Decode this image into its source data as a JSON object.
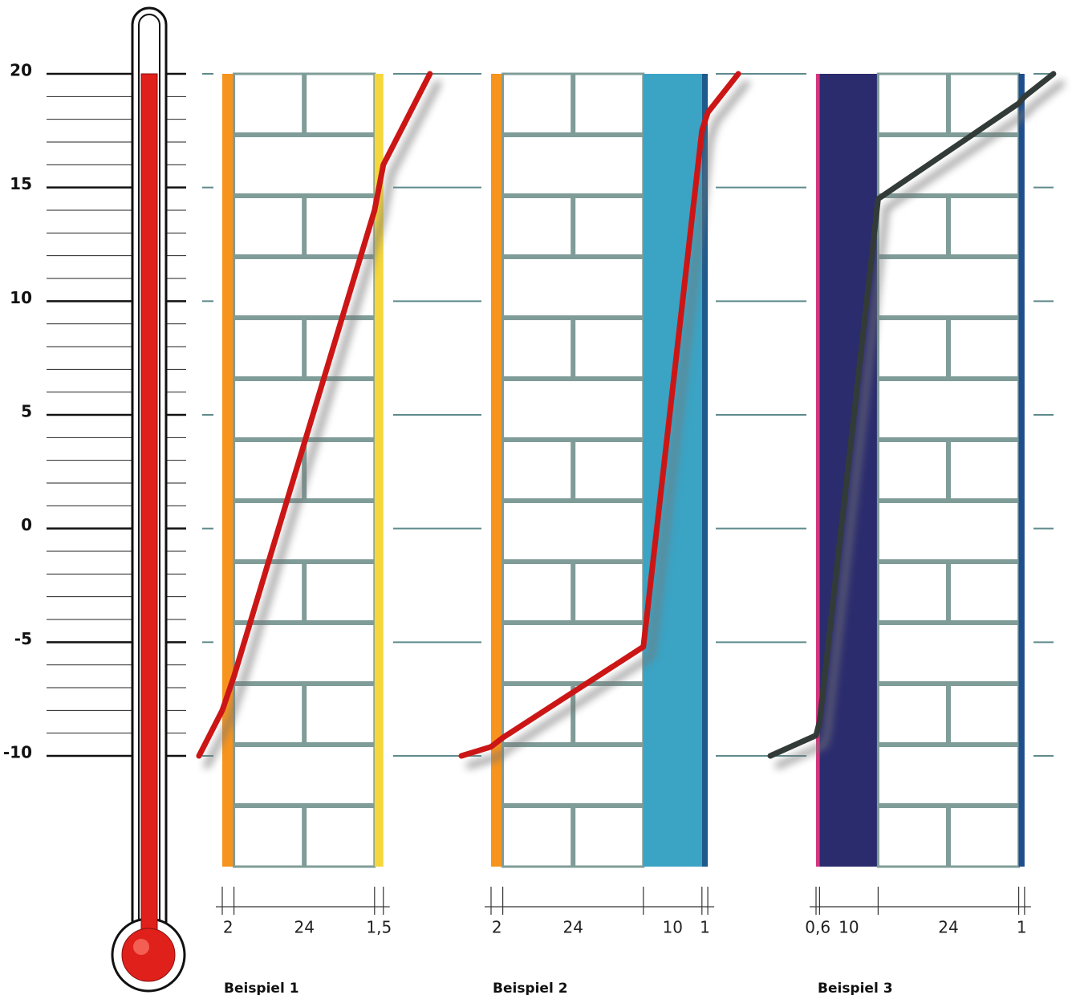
{
  "temperature_axis": {
    "ylim": [
      -10,
      20
    ],
    "yticks": [
      -10,
      -5,
      0,
      5,
      10,
      15,
      20
    ]
  },
  "thermometer": {
    "value": 20,
    "color": "#e0201b"
  },
  "examples": [
    {
      "title": "Beispiel 1",
      "layers": [
        {
          "thickness": 2,
          "color": "#f7941d"
        },
        {
          "thickness": 24,
          "color": "#ffffff",
          "brick": true
        },
        {
          "thickness": {
            "value": 1.5,
            "label": "1,5"
          },
          "color": "#f5d63d"
        }
      ],
      "curve": {
        "color": "#cc1616",
        "values": [
          -10,
          -8,
          -6.5,
          14,
          16,
          20
        ]
      }
    },
    {
      "title": "Beispiel 2",
      "layers": [
        {
          "thickness": 2,
          "color": "#f7941d"
        },
        {
          "thickness": 24,
          "color": "#ffffff",
          "brick": true
        },
        {
          "thickness": 10,
          "color": "#3ba3c4"
        },
        {
          "thickness": 1,
          "color": "#1e5a8c"
        }
      ],
      "curve": {
        "color": "#cc1616",
        "values": [
          -10,
          -9.6,
          -9.2,
          -5.2,
          17.5,
          18.3,
          20
        ]
      }
    },
    {
      "title": "Beispiel 3",
      "layers": [
        {
          "thickness": {
            "value": 0.6,
            "label": "0,6"
          },
          "color": "#d4357e"
        },
        {
          "thickness": 10,
          "color": "#2b2c6e"
        },
        {
          "thickness": 24,
          "color": "#ffffff",
          "brick": true
        },
        {
          "thickness": 1,
          "color": "#1e4e8c"
        }
      ],
      "curve": {
        "color": "#333b38",
        "values": [
          -10,
          -9.1,
          -8.5,
          14.5,
          18.7,
          19,
          20
        ]
      }
    }
  ]
}
